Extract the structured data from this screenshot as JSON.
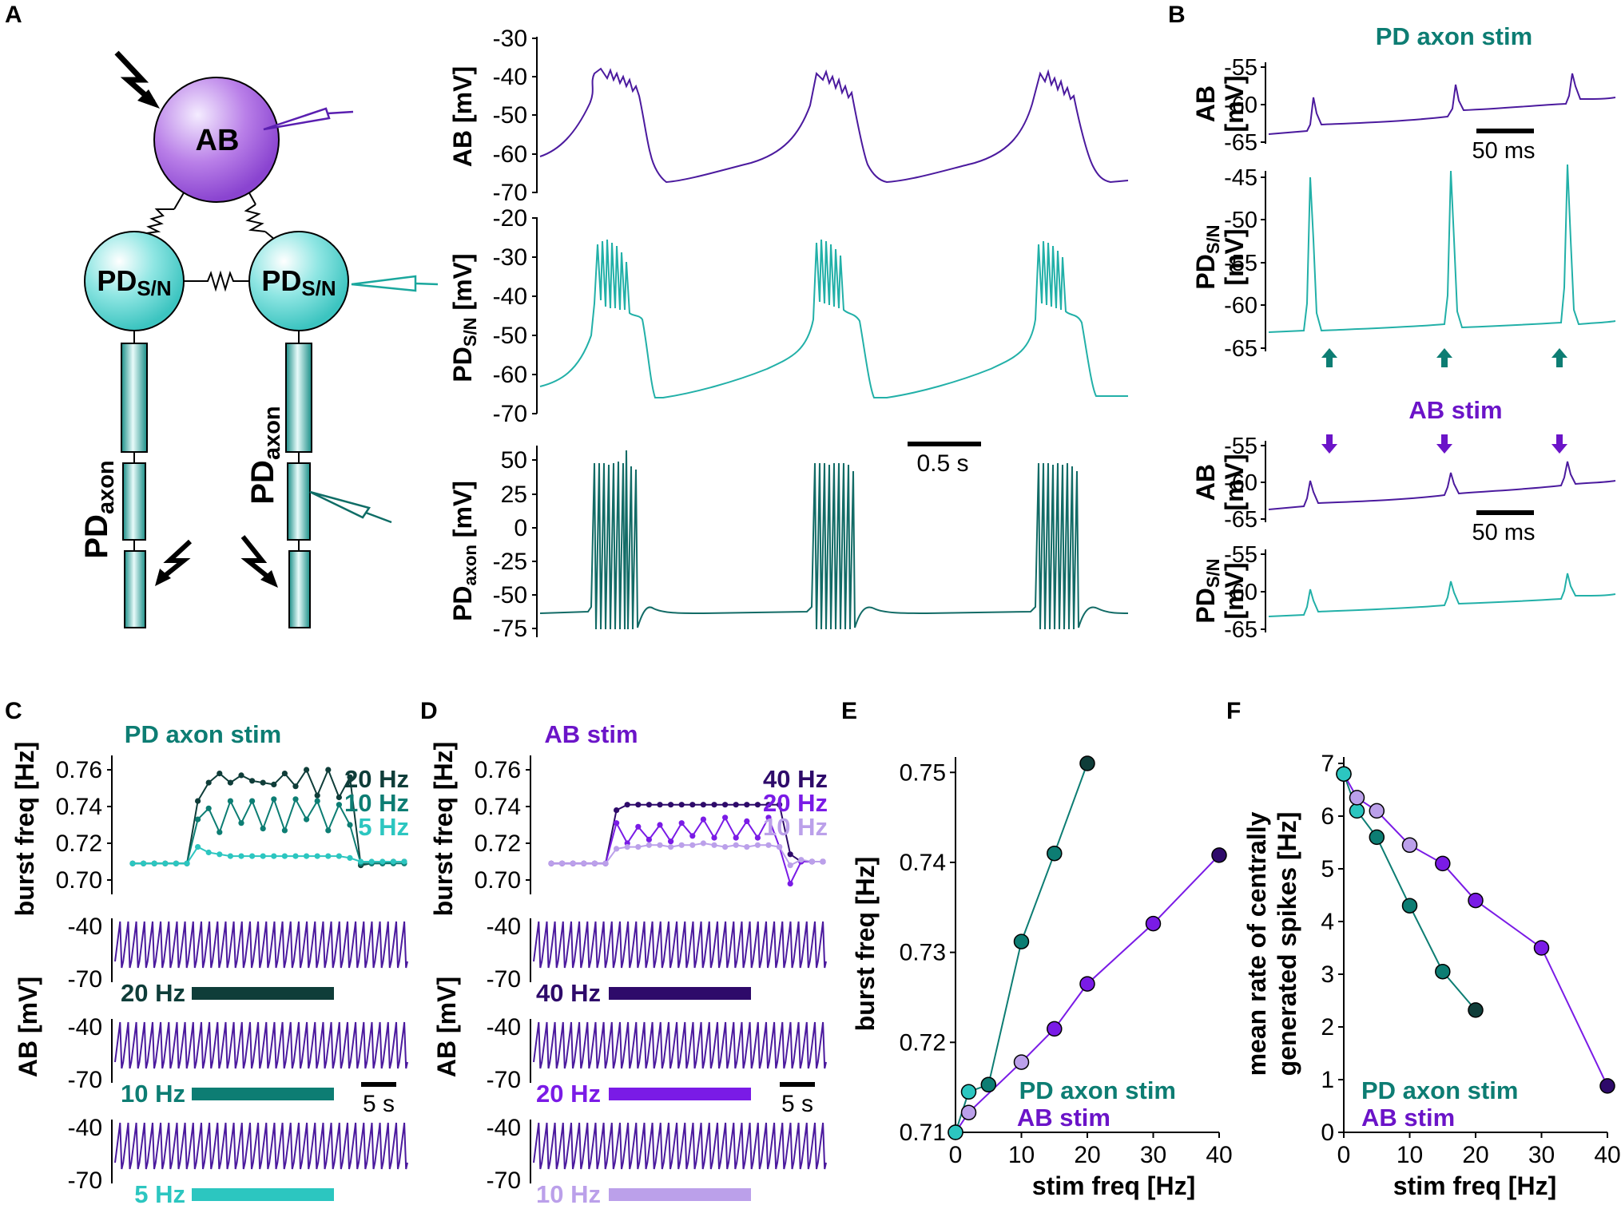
{
  "panel_labels": {
    "A": "A",
    "B": "B",
    "C": "C",
    "D": "D",
    "E": "E",
    "F": "F"
  },
  "colors": {
    "ab": "#4b1a9e",
    "pd": "#22b0a8",
    "axon": "#126b66",
    "dark": "#0f3d39",
    "pd_dark": "#0d7d73",
    "cyan": "#2cc6c0",
    "purple_mid": "#7a1be6",
    "lilac": "#bba0ea",
    "ab_dark": "#2e0a6a"
  },
  "schematic": {
    "ab_label": "AB",
    "pd_sub_main": "PD",
    "pd_sub_idx": "S/N",
    "pd_axon_main": "PD",
    "pd_axon_idx": "axon"
  },
  "panel_a": {
    "ab_trace": {
      "ylabel": "AB [mV]",
      "ticks": [
        "-30",
        "-40",
        "-50",
        "-60",
        "-70"
      ]
    },
    "pd_trace": {
      "ylabel_main": "PD",
      "ylabel_idx": "S/N",
      "ylabel_unit": " [mV]",
      "ticks": [
        "-20",
        "-30",
        "-40",
        "-50",
        "-60",
        "-70"
      ]
    },
    "axon_trace": {
      "ylabel_main": "PD",
      "ylabel_idx": "axon",
      "ylabel_unit": " [mV]",
      "ticks": [
        "50",
        "25",
        "0",
        "-25",
        "-50",
        "-75"
      ]
    },
    "scalebar": "0.5 s"
  },
  "panel_b": {
    "title_pd": "PD axon stim",
    "title_ab": "AB stim",
    "ab_label_1": "AB",
    "mv_label": "[mV]",
    "pd_main": "PD",
    "pd_idx": "S/N",
    "ab_ticks_1": [
      "-55",
      "-60",
      "-65"
    ],
    "pd_ticks_1": [
      "-45",
      "-50",
      "-55",
      "-60",
      "-65"
    ],
    "ab_ticks_2": [
      "-55",
      "-60",
      "-65"
    ],
    "pd_ticks_2": [
      "-55",
      "-60",
      "-65"
    ],
    "scalebar_1": "50 ms",
    "scalebar_2": "50 ms"
  },
  "panel_c": {
    "title": "PD axon stim",
    "ylabel_burst": "burst freq [Hz]",
    "ylabel_ab": "AB [mV]",
    "burst_ticks": [
      "0.76",
      "0.74",
      "0.72",
      "0.70"
    ],
    "legend": [
      "20 Hz",
      "10 Hz",
      "5 Hz"
    ],
    "trace_ticks": [
      "-40",
      "-70"
    ],
    "bars": [
      "20 Hz",
      "10 Hz",
      "5 Hz"
    ],
    "scalebar": "5 s"
  },
  "panel_d": {
    "title": "AB stim",
    "ylabel_burst": "burst freq [Hz]",
    "ylabel_ab": "AB [mV]",
    "burst_ticks": [
      "0.76",
      "0.74",
      "0.72",
      "0.70"
    ],
    "legend": [
      "40 Hz",
      "20 Hz",
      "10 Hz"
    ],
    "trace_ticks": [
      "-40",
      "-70"
    ],
    "bars": [
      "40 Hz",
      "20 Hz",
      "10 Hz"
    ],
    "scalebar": "5 s"
  },
  "chart_data": [
    {
      "id": "E",
      "type": "line",
      "xlabel": "stim freq [Hz]",
      "ylabel": "burst freq [Hz]",
      "xlim": [
        0,
        40
      ],
      "ylim": [
        0.71,
        0.751
      ],
      "xticks": [
        "0",
        "10",
        "20",
        "30",
        "40"
      ],
      "yticks": [
        "0.71",
        "0.72",
        "0.73",
        "0.74",
        "0.75"
      ],
      "legend": [
        "PD axon stim",
        "AB stim"
      ],
      "series": [
        {
          "name": "PD axon stim",
          "x": [
            0,
            2,
            5,
            10,
            15,
            20
          ],
          "y": [
            0.71,
            0.7145,
            0.7153,
            0.7312,
            0.741,
            0.751
          ]
        },
        {
          "name": "AB stim",
          "x": [
            0,
            2,
            10,
            15,
            20,
            30,
            40
          ],
          "y": [
            0.71,
            0.7122,
            0.7178,
            0.7215,
            0.7265,
            0.7332,
            0.7408
          ]
        }
      ]
    },
    {
      "id": "F",
      "type": "line",
      "xlabel": "stim freq [Hz]",
      "ylabel_line1": "mean rate of centrally",
      "ylabel_line2": "generated spikes [Hz]",
      "xlim": [
        0,
        40
      ],
      "ylim": [
        0,
        7
      ],
      "xticks": [
        "0",
        "10",
        "20",
        "30",
        "40"
      ],
      "yticks": [
        "0",
        "1",
        "2",
        "3",
        "4",
        "5",
        "6",
        "7"
      ],
      "legend": [
        "PD axon stim",
        "AB stim"
      ],
      "series": [
        {
          "name": "PD axon stim",
          "x": [
            0,
            2,
            5,
            10,
            15,
            20
          ],
          "y": [
            6.8,
            6.1,
            5.6,
            4.3,
            3.05,
            2.32
          ]
        },
        {
          "name": "AB stim",
          "x": [
            0,
            2,
            5,
            10,
            15,
            20,
            30,
            40
          ],
          "y": [
            6.8,
            6.35,
            6.1,
            5.45,
            5.1,
            4.4,
            3.5,
            0.88
          ]
        }
      ]
    },
    {
      "id": "C-burst",
      "type": "line",
      "ylabel": "burst freq [Hz]",
      "ylim": [
        0.695,
        0.765
      ],
      "series": [
        {
          "name": "20 Hz",
          "values": [
            0.709,
            0.709,
            0.709,
            0.709,
            0.709,
            0.709,
            0.743,
            0.753,
            0.758,
            0.753,
            0.757,
            0.754,
            0.753,
            0.752,
            0.758,
            0.751,
            0.76,
            0.746,
            0.76,
            0.745,
            0.756,
            0.708,
            0.709,
            0.709,
            0.71,
            0.71
          ]
        },
        {
          "name": "10 Hz",
          "values": [
            0.709,
            0.709,
            0.709,
            0.709,
            0.709,
            0.709,
            0.733,
            0.739,
            0.726,
            0.743,
            0.731,
            0.743,
            0.728,
            0.744,
            0.727,
            0.744,
            0.733,
            0.743,
            0.727,
            0.741,
            0.73,
            0.709,
            0.709,
            0.709,
            0.709,
            0.709
          ]
        },
        {
          "name": "5 Hz",
          "values": [
            0.709,
            0.709,
            0.709,
            0.709,
            0.709,
            0.709,
            0.718,
            0.715,
            0.714,
            0.713,
            0.713,
            0.713,
            0.713,
            0.713,
            0.713,
            0.713,
            0.713,
            0.713,
            0.713,
            0.713,
            0.712,
            0.71,
            0.71,
            0.71,
            0.71,
            0.71
          ]
        }
      ]
    },
    {
      "id": "D-burst",
      "type": "line",
      "ylabel": "burst freq [Hz]",
      "ylim": [
        0.695,
        0.765
      ],
      "series": [
        {
          "name": "40 Hz",
          "values": [
            0.709,
            0.709,
            0.709,
            0.709,
            0.709,
            0.709,
            0.738,
            0.741,
            0.741,
            0.741,
            0.741,
            0.741,
            0.741,
            0.741,
            0.741,
            0.741,
            0.741,
            0.741,
            0.741,
            0.741,
            0.741,
            0.741,
            0.714,
            0.71,
            0.71,
            0.71
          ]
        },
        {
          "name": "20 Hz",
          "values": [
            0.709,
            0.709,
            0.709,
            0.709,
            0.709,
            0.709,
            0.731,
            0.72,
            0.729,
            0.722,
            0.73,
            0.721,
            0.731,
            0.724,
            0.733,
            0.723,
            0.734,
            0.723,
            0.732,
            0.723,
            0.734,
            0.718,
            0.698,
            0.71,
            0.71,
            0.71
          ]
        },
        {
          "name": "10 Hz",
          "values": [
            0.709,
            0.709,
            0.709,
            0.709,
            0.709,
            0.709,
            0.717,
            0.718,
            0.718,
            0.719,
            0.719,
            0.718,
            0.719,
            0.719,
            0.72,
            0.719,
            0.718,
            0.719,
            0.718,
            0.719,
            0.719,
            0.718,
            0.708,
            0.711,
            0.71,
            0.71
          ]
        }
      ]
    }
  ]
}
